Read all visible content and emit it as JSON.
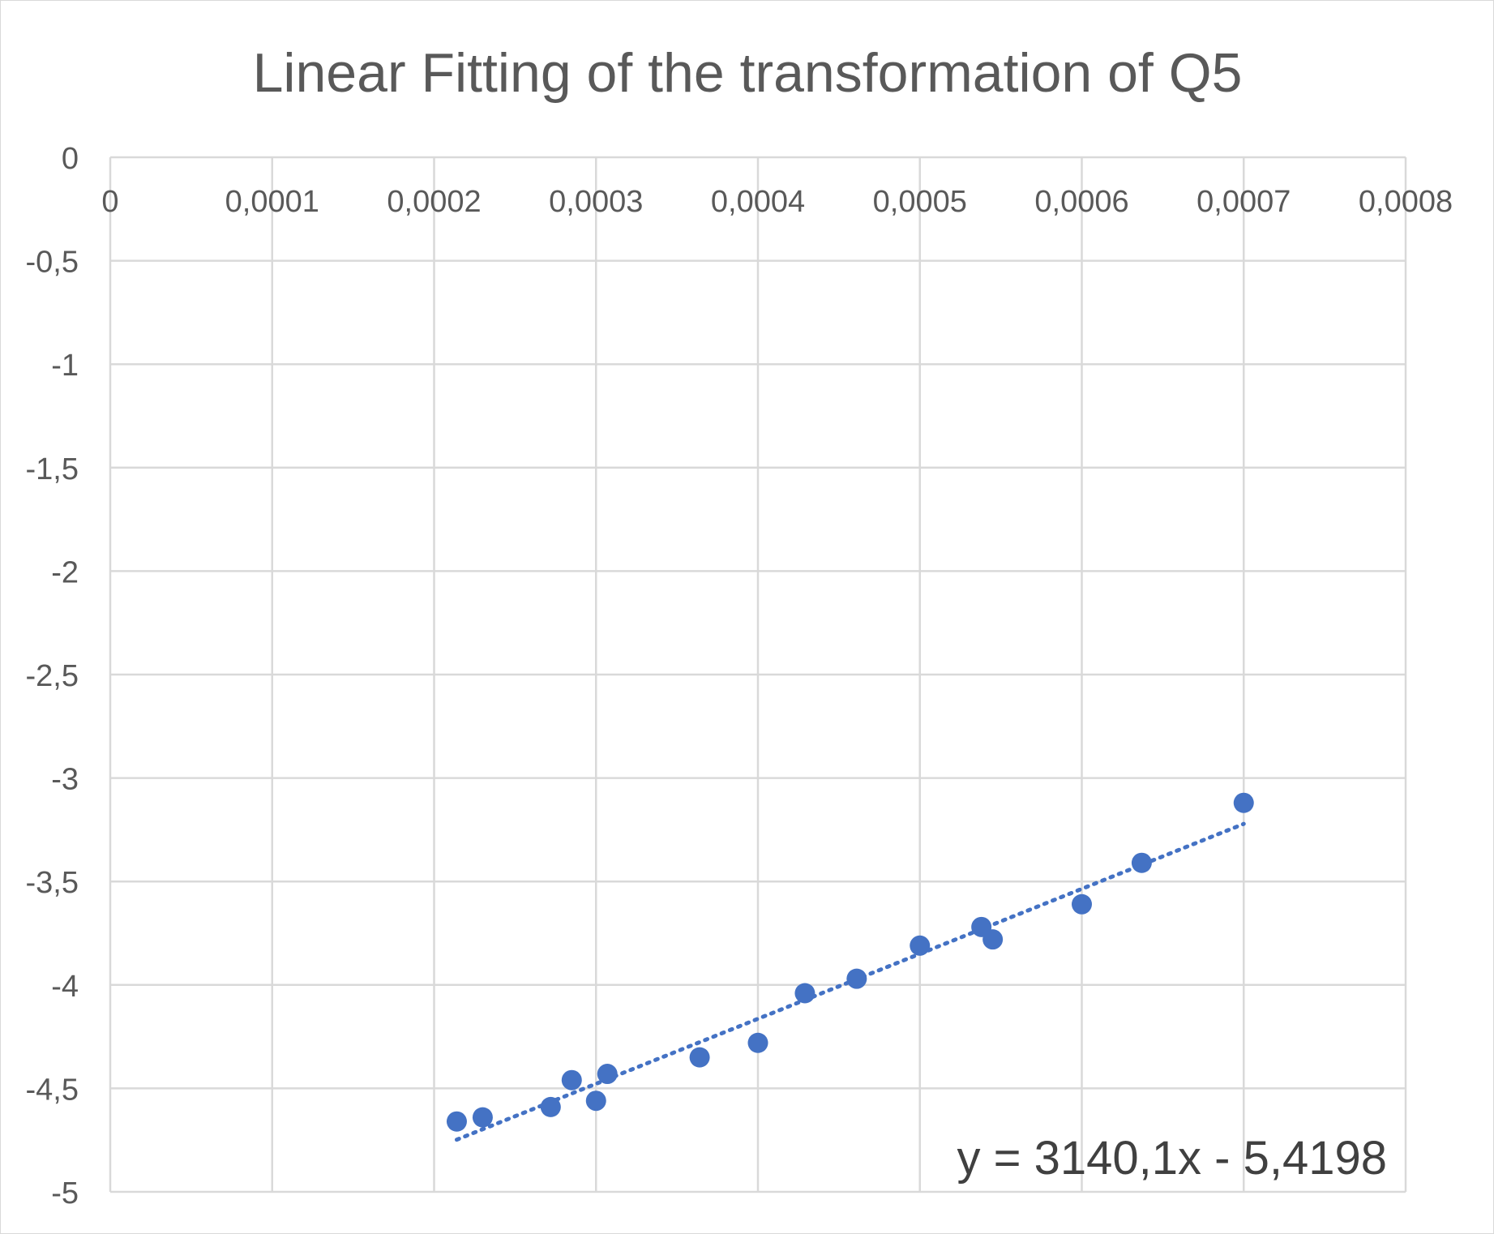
{
  "chart_data": {
    "type": "scatter",
    "title": "Linear Fitting of the transformation of Q5",
    "xlabel": "",
    "ylabel": "",
    "xlim": [
      0,
      0.0008
    ],
    "ylim": [
      -5,
      0
    ],
    "x_ticks": [
      0,
      0.0001,
      0.0002,
      0.0003,
      0.0004,
      0.0005,
      0.0006,
      0.0007,
      0.0008
    ],
    "x_tick_labels": [
      "0",
      "0,0001",
      "0,0002",
      "0,0003",
      "0,0004",
      "0,0005",
      "0,0006",
      "0,0007",
      "0,0008"
    ],
    "y_ticks": [
      0,
      -0.5,
      -1,
      -1.5,
      -2,
      -2.5,
      -3,
      -3.5,
      -4,
      -4.5,
      -5
    ],
    "y_tick_labels": [
      "0",
      "-0,5",
      "-1",
      "-1,5",
      "-2",
      "-2,5",
      "-3",
      "-3,5",
      "-4",
      "-4,5",
      "-5"
    ],
    "x_axis_position": "top",
    "grid": true,
    "legend": "none",
    "marker_color": "#4472c4",
    "series": [
      {
        "x": [
          0.000214,
          0.00023,
          0.000272,
          0.000285,
          0.0003,
          0.000307,
          0.000364,
          0.0004,
          0.000429,
          0.000461,
          0.0005,
          0.000538,
          0.000545,
          0.0006,
          0.000637,
          0.0007
        ],
        "y": [
          -4.66,
          -4.64,
          -4.59,
          -4.46,
          -4.56,
          -4.43,
          -4.35,
          -4.28,
          -4.04,
          -3.97,
          -3.81,
          -3.72,
          -3.78,
          -3.61,
          -3.41,
          -3.12
        ]
      }
    ],
    "trendline": {
      "type": "linear",
      "style": "dotted",
      "color": "#4472c4",
      "slope": 3140.1,
      "intercept": -5.4198,
      "x_range": [
        0.000214,
        0.0007
      ],
      "equation_label": "y = 3140,1x - 5,4198"
    }
  }
}
